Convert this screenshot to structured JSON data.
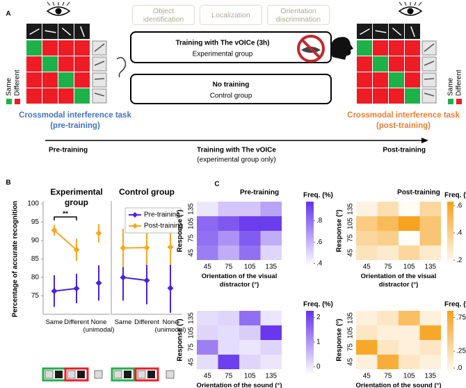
{
  "diagram": {
    "panel_label": "A",
    "tasks": [
      "Object identification",
      "Localization",
      "Orientation discrimination"
    ],
    "experimental_box": {
      "title": "Training with The vOICe (3h)",
      "subtitle": "Experimental group"
    },
    "control_box": {
      "title": "No training",
      "subtitle": "Control group"
    },
    "legend_same": "Same",
    "legend_different": "Different",
    "pre_task": "Crossmodal interference task (pre-training)",
    "post_task": "Crossmodal interference task (post-training)",
    "timeline": {
      "start": "Pre-training",
      "middle": "Training with The vOICe",
      "note": "(experimental group only)",
      "end": "Post-training"
    }
  },
  "panel_b_label": "B",
  "panel_c_label": "C",
  "chart_data": [
    {
      "type": "line",
      "title": "Experimental group",
      "ylabel": "Percentage of accurate recognition",
      "categories": [
        "Same",
        "Different",
        "None (unimodal)"
      ],
      "series": [
        {
          "name": "Pre-training",
          "color": "#4a1fe6",
          "values": [
            76.3,
            77,
            78.5
          ],
          "errors": [
            4.3,
            4,
            4.8
          ]
        },
        {
          "name": "Post-training",
          "color": "#f5a81c",
          "values": [
            92.8,
            87.5,
            92
          ],
          "errors": [
            1.5,
            3,
            2.5
          ]
        }
      ],
      "ylim": [
        70,
        100
      ],
      "yticks": [
        75,
        80,
        85,
        90,
        95,
        100
      ],
      "annotation": "**"
    },
    {
      "type": "line",
      "title": "Control group",
      "categories": [
        "Same",
        "Different",
        "None (unimodal)"
      ],
      "series": [
        {
          "name": "Pre-training",
          "color": "#4a1fe6",
          "values": [
            80,
            79.2,
            77.1
          ],
          "errors": [
            6.3,
            6.5,
            6.7
          ]
        },
        {
          "name": "Post-training",
          "color": "#f5a81c",
          "values": [
            88,
            88.1,
            88.2
          ],
          "errors": [
            5.2,
            4.7,
            4.8
          ]
        }
      ],
      "ylim": [
        70,
        100
      ],
      "legend": "upper right"
    },
    {
      "type": "heatmap",
      "title": "Pre-training",
      "color": "#6333ec",
      "x": [
        45,
        75,
        105,
        135
      ],
      "y": [
        135,
        105,
        75,
        45
      ],
      "xlabel": "Orientation of the visual distractor (°)",
      "ylabel": "Response (°)",
      "values": [
        [
          0.45,
          0.55,
          0.55,
          0.65
        ],
        [
          0.82,
          0.87,
          0.95,
          0.95
        ],
        [
          0.8,
          0.7,
          0.86,
          0.62
        ],
        [
          0.76,
          0.62,
          0.8,
          0.5
        ]
      ],
      "colorbar": {
        "label": "Freq. (%)",
        "lim": [
          0.38,
          0.98
        ],
        "ticks": [
          {
            "value": 0.4,
            "label": ".4"
          },
          {
            "value": 0.6,
            "label": ".6"
          },
          {
            "value": 0.8,
            "label": ".8"
          }
        ]
      }
    },
    {
      "type": "heatmap",
      "title": "Post-training",
      "color": "#f6a11a",
      "x": [
        45,
        75,
        105,
        135
      ],
      "y": [
        135,
        105,
        75,
        45
      ],
      "xlabel": "Orientation of the visual distractor (°)",
      "ylabel": "Response (°)",
      "values": [
        [
          0.22,
          0.32,
          0.18,
          0.36
        ],
        [
          0.42,
          0.5,
          0.62,
          0.45
        ],
        [
          0.36,
          0.4,
          0.17,
          0.45
        ],
        [
          0.3,
          0.26,
          0.36,
          0.26
        ]
      ],
      "colorbar": {
        "label": "Freq. (%)",
        "lim": [
          0.16,
          0.63
        ],
        "ticks": [
          {
            "value": 0.2,
            "label": ".2"
          },
          {
            "value": 0.4,
            "label": ".4"
          },
          {
            "value": 0.6,
            "label": ".6"
          }
        ]
      }
    },
    {
      "type": "heatmap",
      "color": "#6333ec",
      "x": [
        45,
        75,
        105,
        135
      ],
      "y": [
        135,
        105,
        75,
        45
      ],
      "xlabel": "Orientation of the sound (°)",
      "ylabel": "Response (°)",
      "values": [
        [
          0.1,
          0.2,
          1.5,
          0
        ],
        [
          0.2,
          0.1,
          0.3,
          2.2
        ],
        [
          1.3,
          0.1,
          0,
          0.2
        ],
        [
          0.1,
          2.1,
          0.2,
          0
        ]
      ],
      "colorbar": {
        "label": "Freq. (%)",
        "lim": [
          -0.33,
          2.27
        ],
        "ticks": [
          0,
          1,
          2
        ]
      }
    },
    {
      "type": "heatmap",
      "color": "#f6a11a",
      "x": [
        45,
        75,
        105,
        135
      ],
      "y": [
        135,
        105,
        75,
        45
      ],
      "xlabel": "Orientation of the sound (°)",
      "ylabel": "Response (°)",
      "values": [
        [
          0.05,
          0.15,
          0.55,
          0.05
        ],
        [
          0.15,
          0.05,
          0.05,
          0.78
        ],
        [
          0.78,
          0.15,
          0.05,
          0.15
        ],
        [
          0.05,
          0.72,
          0.15,
          0.05
        ]
      ],
      "colorbar": {
        "label": "Freq. (%)",
        "lim": [
          -0.1,
          0.85
        ],
        "ticks": [
          {
            "value": 0.75,
            "label": ".75"
          },
          {
            "value": 0.25,
            "label": ".25"
          },
          {
            "value": 0,
            "label": ".0"
          }
        ]
      }
    }
  ]
}
